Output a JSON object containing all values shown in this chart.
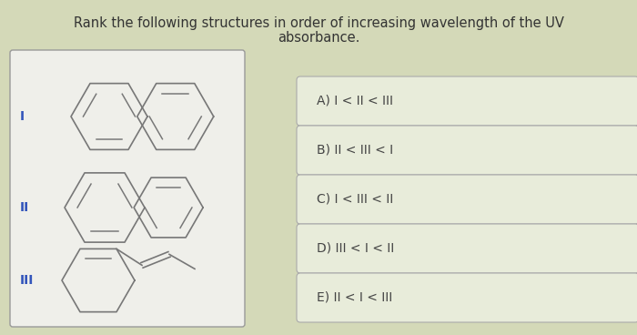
{
  "title_line1": "Rank the following structures in order of increasing wavelength of the UV",
  "title_line2": "absorbance.",
  "bg_color": "#d4d9b8",
  "box_bg": "#efefea",
  "box_border": "#999999",
  "answer_box_bg": "#e8ecda",
  "answer_box_border": "#aaaaaa",
  "roman_labels": [
    "I",
    "II",
    "III"
  ],
  "roman_label_color": "#3355bb",
  "answers": [
    "A) I < II < III",
    "B) II < III < I",
    "C) I < III < II",
    "D) III < I < II",
    "E) II < I < III"
  ],
  "title_fontsize": 10.5,
  "answer_fontsize": 10,
  "roman_fontsize": 10,
  "line_color": "#777777",
  "line_width": 1.2
}
